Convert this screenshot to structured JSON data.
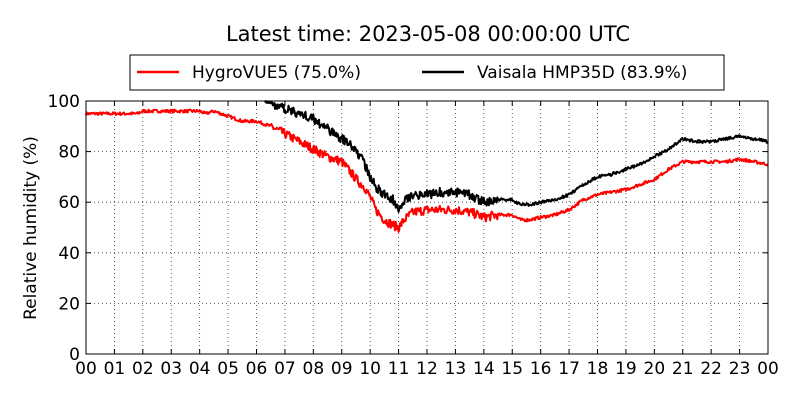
{
  "chart_data": {
    "type": "line",
    "title": "Latest time: 2023-05-08 00:00:00 UTC",
    "ylabel": "Relative humidity (%)",
    "xlabel": "",
    "xlim": [
      0,
      24
    ],
    "ylim": [
      0,
      100
    ],
    "grid": true,
    "legend_position": "top-center",
    "x_ticks": [
      "00",
      "01",
      "02",
      "03",
      "04",
      "05",
      "06",
      "07",
      "08",
      "09",
      "10",
      "11",
      "12",
      "13",
      "14",
      "15",
      "16",
      "17",
      "18",
      "19",
      "20",
      "21",
      "22",
      "23",
      "00"
    ],
    "y_ticks": [
      0,
      20,
      40,
      60,
      80,
      100
    ],
    "x_unit": "hour",
    "series": [
      {
        "name": "HygroVUE5 (75.0%)",
        "color": "#ff0000",
        "x": [
          0,
          1,
          1.8,
          2,
          3,
          4,
          4.2,
          4.5,
          5,
          5.5,
          6,
          6.5,
          7,
          7.5,
          8,
          8.5,
          9,
          9.3,
          9.6,
          9.8,
          10,
          10.2,
          10.5,
          10.8,
          11,
          11.2,
          11.5,
          12,
          12.5,
          13,
          13.5,
          13.8,
          14,
          14.5,
          15,
          15.3,
          15.6,
          16,
          16.5,
          17,
          17.5,
          18,
          18.5,
          19,
          19.5,
          20,
          20.5,
          21,
          21.5,
          22,
          22.5,
          23,
          23.5,
          24
        ],
        "values": [
          95,
          95,
          95,
          96,
          96,
          96,
          95,
          96,
          94,
          92,
          92,
          90,
          87,
          84,
          81,
          78,
          76,
          72,
          68,
          66,
          62,
          57,
          53,
          51,
          50,
          53,
          56,
          57,
          57,
          57,
          56,
          55,
          54,
          55,
          55,
          53,
          53,
          54,
          55,
          57,
          61,
          63,
          64,
          65,
          67,
          69,
          73,
          76,
          76,
          76,
          76,
          77,
          76,
          75
        ]
      },
      {
        "name": "Vaisala HMP35D (83.9%)",
        "color": "#000000",
        "x": [
          6.3,
          6.5,
          7,
          7.5,
          8,
          8.5,
          9,
          9.3,
          9.6,
          9.8,
          10,
          10.2,
          10.5,
          10.8,
          11,
          11.2,
          11.5,
          12,
          12.5,
          13,
          13.5,
          13.8,
          14,
          14.5,
          15,
          15.3,
          15.6,
          16,
          16.5,
          17,
          17.5,
          18,
          18.5,
          19,
          19.5,
          20,
          20.5,
          21,
          21.5,
          22,
          22.5,
          23,
          23.5,
          24
        ],
        "values": [
          100,
          99,
          97,
          95,
          93,
          89,
          85,
          83,
          79,
          75,
          70,
          66,
          63,
          61,
          58,
          61,
          63,
          63,
          64,
          64,
          63,
          61,
          60,
          61,
          61,
          59,
          59,
          60,
          61,
          63,
          67,
          70,
          71,
          73,
          75,
          78,
          81,
          85,
          84,
          84,
          85,
          86,
          85,
          84
        ]
      }
    ]
  }
}
